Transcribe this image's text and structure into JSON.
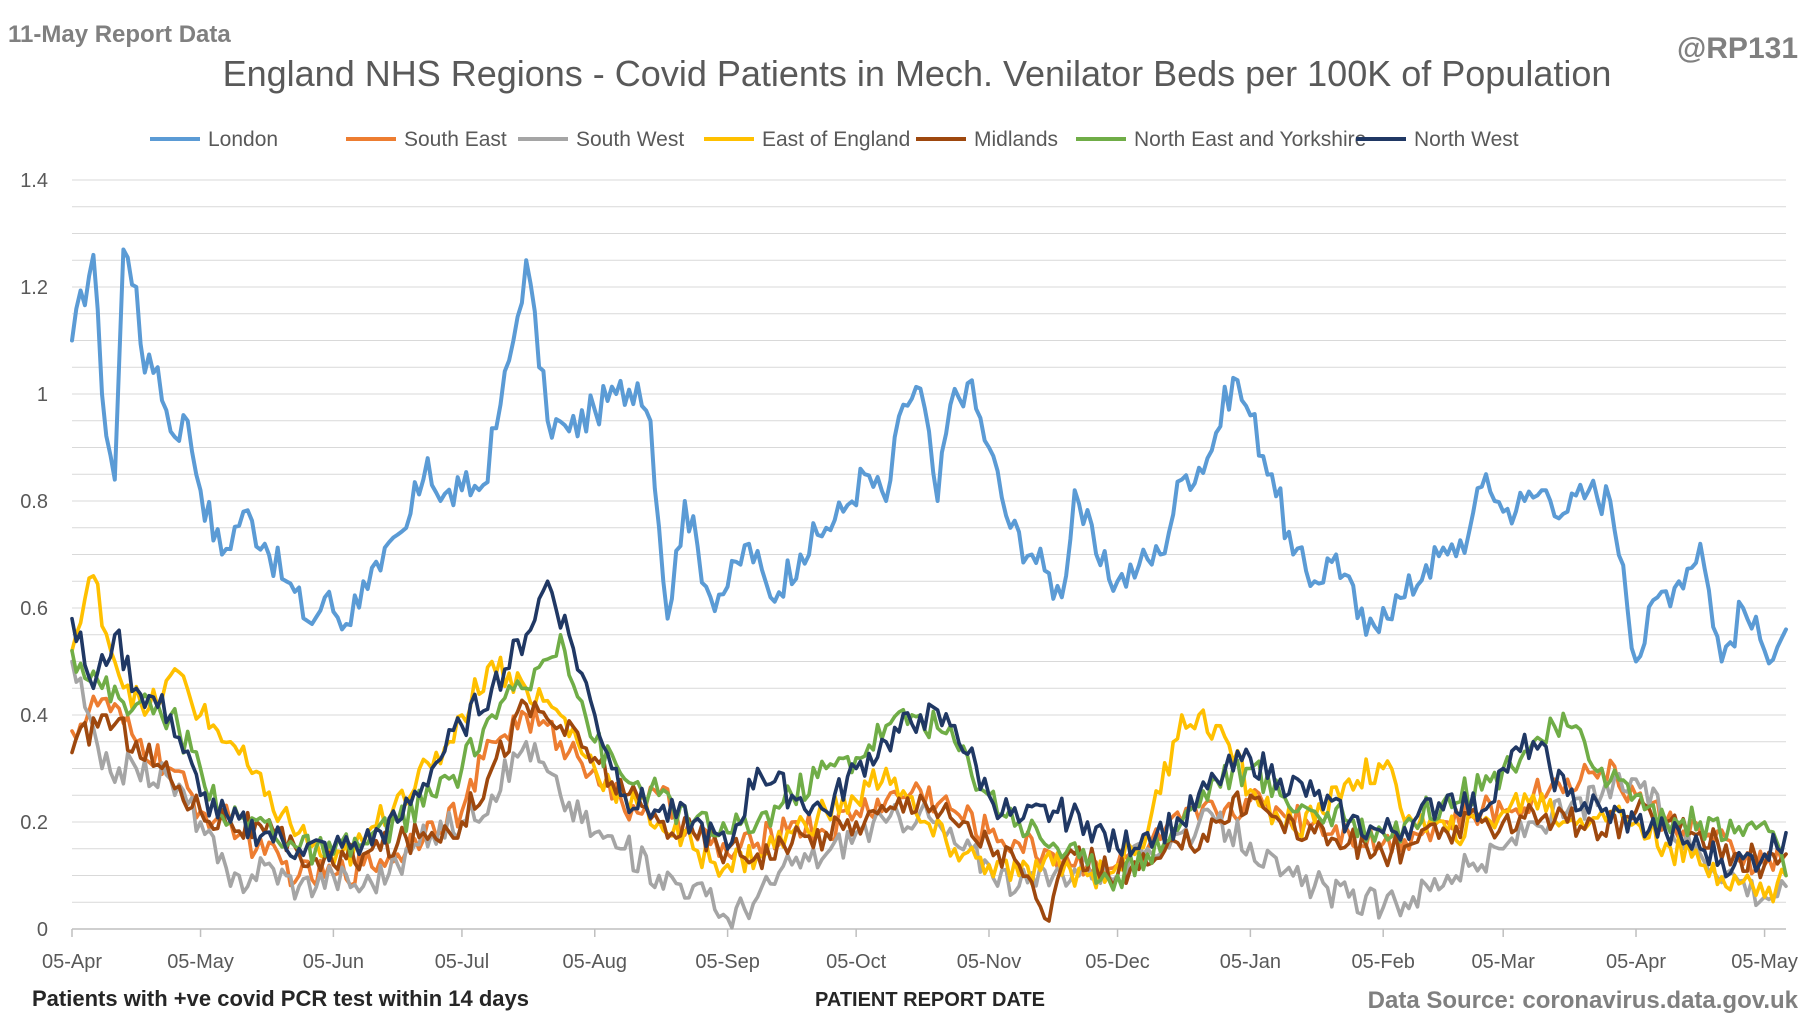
{
  "header": {
    "report_label": "11-May Report Data",
    "handle": "@RP131",
    "footer_left": "Patients with +ve covid PCR test within 14 days",
    "source": "Data Source: coronavirus.data.gov.uk"
  },
  "chart_data": {
    "type": "line",
    "title": "England NHS Regions - Covid Patients in Mech. Venilator Beds per 100K of Population",
    "xlabel": "PATIENT REPORT DATE",
    "ylabel": "",
    "ylim": [
      0,
      1.4
    ],
    "yticks": [
      0,
      0.2,
      0.4,
      0.6,
      0.8,
      1,
      1.2,
      1.4
    ],
    "ytick_labels": [
      "0",
      "0.2",
      "0.4",
      "0.6",
      "0.8",
      "1",
      "1.2",
      "1.4"
    ],
    "xlim": [
      "2021-04-05",
      "2022-05-10"
    ],
    "xticks": [
      "2021-04-05",
      "2021-05-05",
      "2021-06-05",
      "2021-07-05",
      "2021-08-05",
      "2021-09-05",
      "2021-10-05",
      "2021-11-05",
      "2021-12-05",
      "2022-01-05",
      "2022-02-05",
      "2022-03-05",
      "2022-04-05",
      "2022-05-05"
    ],
    "xtick_labels": [
      "05-Apr",
      "05-May",
      "05-Jun",
      "05-Jul",
      "05-Aug",
      "05-Sep",
      "05-Oct",
      "05-Nov",
      "05-Dec",
      "05-Jan",
      "05-Feb",
      "05-Mar",
      "05-Apr",
      "05-May"
    ],
    "grid": "horizontal",
    "legend": "top",
    "series": [
      {
        "name": "London",
        "color": "#5B9BD5",
        "x": [
          "2021-04-05",
          "2021-04-10",
          "2021-04-12",
          "2021-04-15",
          "2021-04-17",
          "2021-04-20",
          "2021-04-22",
          "2021-04-25",
          "2021-04-28",
          "2021-05-02",
          "2021-05-05",
          "2021-05-10",
          "2021-05-15",
          "2021-05-20",
          "2021-05-25",
          "2021-05-31",
          "2021-06-03",
          "2021-06-08",
          "2021-06-12",
          "2021-06-16",
          "2021-06-22",
          "2021-06-27",
          "2021-06-30",
          "2021-07-05",
          "2021-07-10",
          "2021-07-14",
          "2021-07-17",
          "2021-07-20",
          "2021-07-25",
          "2021-07-30",
          "2021-08-05",
          "2021-08-10",
          "2021-08-15",
          "2021-08-18",
          "2021-08-22",
          "2021-08-26",
          "2021-09-01",
          "2021-09-05",
          "2021-09-10",
          "2021-09-15",
          "2021-09-22",
          "2021-09-28",
          "2021-10-02",
          "2021-10-07",
          "2021-10-12",
          "2021-10-16",
          "2021-10-20",
          "2021-10-24",
          "2021-10-27",
          "2021-10-31",
          "2021-11-05",
          "2021-11-10",
          "2021-11-15",
          "2021-11-18",
          "2021-11-22",
          "2021-11-25",
          "2021-12-01",
          "2021-12-05",
          "2021-12-10",
          "2021-12-15",
          "2021-12-20",
          "2021-12-26",
          "2022-01-01",
          "2022-01-05",
          "2022-01-10",
          "2022-01-15",
          "2022-01-20",
          "2022-01-25",
          "2022-02-01",
          "2022-02-05",
          "2022-02-10",
          "2022-02-15",
          "2022-02-20",
          "2022-02-25",
          "2022-03-01",
          "2022-03-05",
          "2022-03-10",
          "2022-03-15",
          "2022-03-20",
          "2022-03-25",
          "2022-03-30",
          "2022-04-02",
          "2022-04-05",
          "2022-04-10",
          "2022-04-15",
          "2022-04-20",
          "2022-04-25",
          "2022-04-30",
          "2022-05-05",
          "2022-05-10"
        ],
        "values": [
          1.1,
          1.26,
          1.0,
          0.84,
          1.27,
          1.2,
          1.04,
          1.05,
          0.93,
          0.95,
          0.82,
          0.7,
          0.78,
          0.72,
          0.65,
          0.57,
          0.62,
          0.57,
          0.65,
          0.67,
          0.75,
          0.88,
          0.8,
          0.82,
          0.83,
          0.98,
          1.1,
          1.25,
          0.95,
          0.93,
          0.97,
          1.0,
          1.02,
          0.95,
          0.58,
          0.8,
          0.62,
          0.64,
          0.72,
          0.62,
          0.7,
          0.75,
          0.78,
          0.85,
          0.8,
          0.98,
          1.01,
          0.8,
          0.98,
          1.02,
          0.9,
          0.75,
          0.7,
          0.67,
          0.62,
          0.82,
          0.68,
          0.65,
          0.68,
          0.7,
          0.84,
          0.88,
          1.03,
          0.96,
          0.85,
          0.7,
          0.65,
          0.7,
          0.55,
          0.6,
          0.62,
          0.68,
          0.7,
          0.74,
          0.85,
          0.78,
          0.8,
          0.82,
          0.78,
          0.82,
          0.8,
          0.68,
          0.5,
          0.62,
          0.65,
          0.72,
          0.5,
          0.6,
          0.52,
          0.56
        ]
      },
      {
        "name": "South East",
        "color": "#ED7D31",
        "x": [
          "2021-04-05",
          "2021-04-12",
          "2021-04-20",
          "2021-04-28",
          "2021-05-05",
          "2021-05-12",
          "2021-05-20",
          "2021-05-28",
          "2021-06-05",
          "2021-06-12",
          "2021-06-20",
          "2021-06-28",
          "2021-07-05",
          "2021-07-12",
          "2021-07-20",
          "2021-07-28",
          "2021-08-05",
          "2021-08-12",
          "2021-08-20",
          "2021-08-28",
          "2021-09-05",
          "2021-09-12",
          "2021-09-20",
          "2021-09-28",
          "2021-10-05",
          "2021-10-12",
          "2021-10-20",
          "2021-10-28",
          "2021-11-05",
          "2021-11-12",
          "2021-11-20",
          "2021-11-28",
          "2021-12-05",
          "2021-12-12",
          "2021-12-20",
          "2021-12-28",
          "2022-01-05",
          "2022-01-12",
          "2022-01-20",
          "2022-01-28",
          "2022-02-05",
          "2022-02-12",
          "2022-02-20",
          "2022-02-28",
          "2022-03-05",
          "2022-03-12",
          "2022-03-20",
          "2022-03-28",
          "2022-04-05",
          "2022-04-12",
          "2022-04-20",
          "2022-04-28",
          "2022-05-05",
          "2022-05-10"
        ],
        "values": [
          0.37,
          0.43,
          0.35,
          0.3,
          0.22,
          0.2,
          0.14,
          0.1,
          0.1,
          0.12,
          0.14,
          0.2,
          0.22,
          0.35,
          0.4,
          0.35,
          0.3,
          0.22,
          0.25,
          0.18,
          0.14,
          0.16,
          0.2,
          0.18,
          0.22,
          0.24,
          0.26,
          0.22,
          0.18,
          0.16,
          0.14,
          0.12,
          0.12,
          0.15,
          0.2,
          0.22,
          0.24,
          0.22,
          0.2,
          0.18,
          0.16,
          0.18,
          0.2,
          0.22,
          0.22,
          0.25,
          0.28,
          0.3,
          0.25,
          0.2,
          0.18,
          0.14,
          0.12,
          0.14
        ]
      },
      {
        "name": "South West",
        "color": "#A5A5A5",
        "x": [
          "2021-04-05",
          "2021-04-12",
          "2021-04-20",
          "2021-04-28",
          "2021-05-05",
          "2021-05-12",
          "2021-05-20",
          "2021-05-28",
          "2021-06-05",
          "2021-06-12",
          "2021-06-20",
          "2021-06-28",
          "2021-07-05",
          "2021-07-12",
          "2021-07-20",
          "2021-07-28",
          "2021-08-05",
          "2021-08-12",
          "2021-08-20",
          "2021-08-28",
          "2021-09-05",
          "2021-09-12",
          "2021-09-20",
          "2021-09-28",
          "2021-10-05",
          "2021-10-12",
          "2021-10-20",
          "2021-10-28",
          "2021-11-05",
          "2021-11-12",
          "2021-11-20",
          "2021-11-28",
          "2021-12-05",
          "2021-12-12",
          "2021-12-20",
          "2021-12-28",
          "2022-01-05",
          "2022-01-12",
          "2022-01-20",
          "2022-01-28",
          "2022-02-05",
          "2022-02-12",
          "2022-02-20",
          "2022-02-28",
          "2022-03-05",
          "2022-03-12",
          "2022-03-20",
          "2022-03-28",
          "2022-04-05",
          "2022-04-12",
          "2022-04-20",
          "2022-04-28",
          "2022-05-05",
          "2022-05-10"
        ],
        "values": [
          0.5,
          0.3,
          0.3,
          0.28,
          0.2,
          0.08,
          0.12,
          0.08,
          0.1,
          0.08,
          0.12,
          0.18,
          0.2,
          0.25,
          0.35,
          0.25,
          0.18,
          0.15,
          0.1,
          0.08,
          0.02,
          0.06,
          0.12,
          0.14,
          0.18,
          0.2,
          0.22,
          0.16,
          0.12,
          0.08,
          0.1,
          0.12,
          0.1,
          0.15,
          0.18,
          0.2,
          0.16,
          0.1,
          0.08,
          0.06,
          0.04,
          0.06,
          0.1,
          0.12,
          0.15,
          0.2,
          0.22,
          0.25,
          0.28,
          0.2,
          0.14,
          0.1,
          0.06,
          0.08
        ]
      },
      {
        "name": "East of England",
        "color": "#FFC000",
        "x": [
          "2021-04-05",
          "2021-04-10",
          "2021-04-15",
          "2021-04-22",
          "2021-04-30",
          "2021-05-05",
          "2021-05-12",
          "2021-05-20",
          "2021-05-28",
          "2021-06-05",
          "2021-06-12",
          "2021-06-20",
          "2021-06-28",
          "2021-07-05",
          "2021-07-12",
          "2021-07-20",
          "2021-07-28",
          "2021-08-05",
          "2021-08-12",
          "2021-08-20",
          "2021-08-28",
          "2021-09-05",
          "2021-09-12",
          "2021-09-20",
          "2021-09-28",
          "2021-10-05",
          "2021-10-12",
          "2021-10-20",
          "2021-10-28",
          "2021-11-05",
          "2021-11-12",
          "2021-11-20",
          "2021-11-28",
          "2021-12-05",
          "2021-12-12",
          "2021-12-20",
          "2021-12-28",
          "2022-01-05",
          "2022-01-12",
          "2022-01-20",
          "2022-01-28",
          "2022-02-05",
          "2022-02-12",
          "2022-02-20",
          "2022-02-28",
          "2022-03-05",
          "2022-03-12",
          "2022-03-20",
          "2022-03-28",
          "2022-04-05",
          "2022-04-12",
          "2022-04-20",
          "2022-04-28",
          "2022-05-05",
          "2022-05-10"
        ],
        "values": [
          0.52,
          0.66,
          0.5,
          0.4,
          0.48,
          0.4,
          0.35,
          0.25,
          0.18,
          0.12,
          0.16,
          0.25,
          0.3,
          0.4,
          0.5,
          0.45,
          0.4,
          0.3,
          0.25,
          0.2,
          0.15,
          0.12,
          0.14,
          0.18,
          0.22,
          0.24,
          0.3,
          0.2,
          0.15,
          0.12,
          0.1,
          0.12,
          0.1,
          0.12,
          0.18,
          0.4,
          0.38,
          0.26,
          0.2,
          0.2,
          0.28,
          0.3,
          0.2,
          0.18,
          0.2,
          0.22,
          0.25,
          0.2,
          0.22,
          0.2,
          0.16,
          0.12,
          0.1,
          0.06,
          0.1
        ]
      },
      {
        "name": "Midlands",
        "color": "#9E480E",
        "x": [
          "2021-04-05",
          "2021-04-12",
          "2021-04-20",
          "2021-04-28",
          "2021-05-05",
          "2021-05-12",
          "2021-05-20",
          "2021-05-28",
          "2021-06-05",
          "2021-06-12",
          "2021-06-20",
          "2021-06-28",
          "2021-07-05",
          "2021-07-12",
          "2021-07-20",
          "2021-07-28",
          "2021-08-05",
          "2021-08-12",
          "2021-08-20",
          "2021-08-28",
          "2021-09-05",
          "2021-09-12",
          "2021-09-20",
          "2021-09-28",
          "2021-10-05",
          "2021-10-12",
          "2021-10-20",
          "2021-10-28",
          "2021-11-05",
          "2021-11-12",
          "2021-11-18",
          "2021-11-25",
          "2021-12-05",
          "2021-12-12",
          "2021-12-20",
          "2021-12-28",
          "2022-01-05",
          "2022-01-12",
          "2022-01-20",
          "2022-01-28",
          "2022-02-05",
          "2022-02-12",
          "2022-02-20",
          "2022-02-28",
          "2022-03-05",
          "2022-03-12",
          "2022-03-20",
          "2022-03-28",
          "2022-04-05",
          "2022-04-12",
          "2022-04-20",
          "2022-04-28",
          "2022-05-05",
          "2022-05-10"
        ],
        "values": [
          0.33,
          0.4,
          0.35,
          0.28,
          0.22,
          0.2,
          0.18,
          0.14,
          0.12,
          0.14,
          0.16,
          0.18,
          0.2,
          0.3,
          0.42,
          0.38,
          0.32,
          0.25,
          0.2,
          0.18,
          0.15,
          0.14,
          0.16,
          0.18,
          0.2,
          0.22,
          0.25,
          0.2,
          0.16,
          0.12,
          0.02,
          0.14,
          0.1,
          0.12,
          0.15,
          0.2,
          0.25,
          0.2,
          0.18,
          0.16,
          0.14,
          0.16,
          0.18,
          0.2,
          0.2,
          0.22,
          0.2,
          0.18,
          0.22,
          0.2,
          0.18,
          0.14,
          0.12,
          0.14
        ]
      },
      {
        "name": "North East and Yorkshire",
        "color": "#70AD47",
        "x": [
          "2021-04-05",
          "2021-04-12",
          "2021-04-20",
          "2021-04-28",
          "2021-05-05",
          "2021-05-12",
          "2021-05-20",
          "2021-05-28",
          "2021-06-05",
          "2021-06-12",
          "2021-06-20",
          "2021-06-28",
          "2021-07-05",
          "2021-07-12",
          "2021-07-20",
          "2021-07-28",
          "2021-08-05",
          "2021-08-12",
          "2021-08-20",
          "2021-08-28",
          "2021-09-05",
          "2021-09-12",
          "2021-09-20",
          "2021-09-28",
          "2021-10-05",
          "2021-10-12",
          "2021-10-20",
          "2021-10-28",
          "2021-11-05",
          "2021-11-12",
          "2021-11-20",
          "2021-11-28",
          "2021-12-05",
          "2021-12-12",
          "2021-12-20",
          "2021-12-28",
          "2022-01-05",
          "2022-01-12",
          "2022-01-20",
          "2022-01-28",
          "2022-02-05",
          "2022-02-12",
          "2022-02-20",
          "2022-02-28",
          "2022-03-05",
          "2022-03-12",
          "2022-03-20",
          "2022-03-28",
          "2022-04-05",
          "2022-04-12",
          "2022-04-20",
          "2022-04-28",
          "2022-05-05",
          "2022-05-10"
        ],
        "values": [
          0.52,
          0.45,
          0.42,
          0.4,
          0.3,
          0.2,
          0.2,
          0.15,
          0.14,
          0.16,
          0.2,
          0.25,
          0.3,
          0.4,
          0.45,
          0.55,
          0.35,
          0.28,
          0.25,
          0.2,
          0.18,
          0.2,
          0.25,
          0.3,
          0.32,
          0.38,
          0.4,
          0.35,
          0.25,
          0.2,
          0.16,
          0.12,
          0.1,
          0.14,
          0.2,
          0.28,
          0.3,
          0.25,
          0.22,
          0.2,
          0.18,
          0.2,
          0.25,
          0.26,
          0.3,
          0.35,
          0.38,
          0.3,
          0.25,
          0.2,
          0.2,
          0.18,
          0.2,
          0.1
        ]
      },
      {
        "name": "North West",
        "color": "#203864",
        "x": [
          "2021-04-05",
          "2021-04-10",
          "2021-04-15",
          "2021-04-20",
          "2021-04-28",
          "2021-05-05",
          "2021-05-12",
          "2021-05-20",
          "2021-05-28",
          "2021-06-05",
          "2021-06-12",
          "2021-06-20",
          "2021-06-28",
          "2021-07-05",
          "2021-07-12",
          "2021-07-20",
          "2021-07-25",
          "2021-07-30",
          "2021-08-05",
          "2021-08-12",
          "2021-08-20",
          "2021-08-28",
          "2021-09-05",
          "2021-09-12",
          "2021-09-20",
          "2021-09-28",
          "2021-10-05",
          "2021-10-12",
          "2021-10-20",
          "2021-10-28",
          "2021-11-05",
          "2021-11-12",
          "2021-11-20",
          "2021-11-28",
          "2021-12-05",
          "2021-12-12",
          "2021-12-20",
          "2021-12-28",
          "2022-01-05",
          "2022-01-12",
          "2022-01-20",
          "2022-01-28",
          "2022-02-05",
          "2022-02-12",
          "2022-02-20",
          "2022-02-28",
          "2022-03-05",
          "2022-03-12",
          "2022-03-20",
          "2022-03-28",
          "2022-04-05",
          "2022-04-12",
          "2022-04-20",
          "2022-04-28",
          "2022-05-05",
          "2022-05-10"
        ],
        "values": [
          0.58,
          0.45,
          0.55,
          0.45,
          0.4,
          0.25,
          0.2,
          0.18,
          0.15,
          0.15,
          0.16,
          0.2,
          0.3,
          0.38,
          0.45,
          0.55,
          0.65,
          0.55,
          0.4,
          0.25,
          0.22,
          0.2,
          0.15,
          0.3,
          0.25,
          0.22,
          0.3,
          0.35,
          0.4,
          0.38,
          0.25,
          0.2,
          0.22,
          0.2,
          0.15,
          0.18,
          0.2,
          0.28,
          0.32,
          0.28,
          0.25,
          0.2,
          0.18,
          0.2,
          0.25,
          0.22,
          0.3,
          0.35,
          0.25,
          0.22,
          0.2,
          0.18,
          0.15,
          0.12,
          0.14,
          0.18
        ]
      }
    ]
  }
}
